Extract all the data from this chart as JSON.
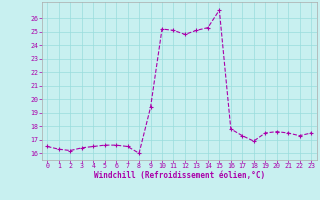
{
  "xlabel": "Windchill (Refroidissement éolien,°C)",
  "ylabel": "",
  "background_color": "#c8f0f0",
  "line_color": "#aa00aa",
  "grid_color": "#99dddd",
  "xlim": [
    -0.5,
    23.5
  ],
  "ylim": [
    15.5,
    27.2
  ],
  "xticks": [
    0,
    1,
    2,
    3,
    4,
    5,
    6,
    7,
    8,
    9,
    10,
    11,
    12,
    13,
    14,
    15,
    16,
    17,
    18,
    19,
    20,
    21,
    22,
    23
  ],
  "yticks": [
    16,
    17,
    18,
    19,
    20,
    21,
    22,
    23,
    24,
    25,
    26
  ],
  "x": [
    0,
    1,
    2,
    3,
    4,
    5,
    6,
    7,
    8,
    9,
    10,
    11,
    12,
    13,
    14,
    15,
    16,
    17,
    18,
    19,
    20,
    21,
    22,
    23
  ],
  "y": [
    16.5,
    16.3,
    16.2,
    16.4,
    16.5,
    16.6,
    16.6,
    16.5,
    16.0,
    19.4,
    25.2,
    25.1,
    24.8,
    25.1,
    25.3,
    26.6,
    17.8,
    17.3,
    16.9,
    17.5,
    17.6,
    17.5,
    17.3,
    17.5
  ]
}
